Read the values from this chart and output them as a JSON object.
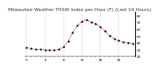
{
  "title": "Milwaukee Weather THSW Index per Hour (F) (Last 24 Hours)",
  "hours": [
    0,
    1,
    2,
    3,
    4,
    5,
    6,
    7,
    8,
    9,
    10,
    11,
    12,
    13,
    14,
    15,
    16,
    17,
    18,
    19,
    20,
    21,
    22,
    23
  ],
  "values": [
    33,
    31,
    30,
    30,
    29,
    29,
    29,
    30,
    34,
    42,
    55,
    65,
    71,
    74,
    70,
    68,
    63,
    57,
    50,
    46,
    43,
    41,
    40,
    39
  ],
  "line_color": "#cc0000",
  "marker_color": "#000000",
  "bg_color": "#ffffff",
  "grid_color": "#888888",
  "ylim_min": 20,
  "ylim_max": 85,
  "yticks": [
    20,
    30,
    40,
    50,
    60,
    70,
    80
  ],
  "vgrid_hours": [
    0,
    4,
    8,
    12,
    16,
    20
  ],
  "title_fontsize": 4.2,
  "tick_fontsize": 3.2,
  "xtick_labels": [
    "0",
    "",
    "",
    "",
    "4",
    "",
    "",
    "",
    "8",
    "",
    "",
    "",
    "12",
    "",
    "",
    "",
    "16",
    "",
    "",
    "",
    "20",
    "",
    "",
    ""
  ]
}
